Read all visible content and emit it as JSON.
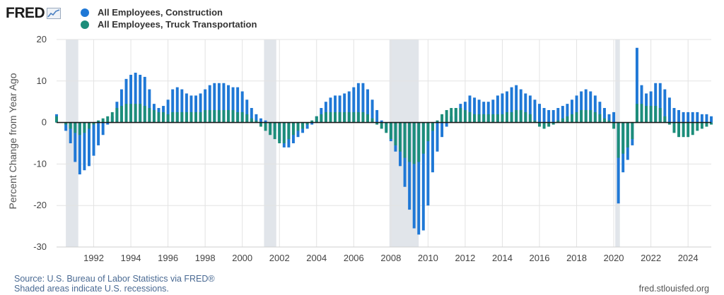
{
  "logo": {
    "text": "FRED"
  },
  "legend": [
    {
      "label": "All Employees, Construction",
      "color": "#1f78d6"
    },
    {
      "label": "All Employees, Truck Transportation",
      "color": "#1c8d7a"
    }
  ],
  "footer": {
    "source": "Source: U.S. Bureau of Labor Statistics via FRED®",
    "recessions_note": "Shaded areas indicate U.S. recessions.",
    "site": "fred.stlouisfed.org"
  },
  "chart_data": {
    "type": "bar",
    "ylabel": "Percent Change from Year Ago",
    "xlabel": "",
    "ylim": [
      -30,
      20
    ],
    "yticks": [
      20,
      10,
      0,
      -10,
      -20,
      -30
    ],
    "xlim": [
      1990.0,
      2025.25
    ],
    "xticks": [
      1992,
      1994,
      1996,
      1998,
      2000,
      2002,
      2004,
      2006,
      2008,
      2010,
      2012,
      2014,
      2016,
      2018,
      2020,
      2022,
      2024
    ],
    "grid": true,
    "legend_position": "top-left",
    "recessions": [
      [
        1990.5,
        1991.17
      ],
      [
        2001.17,
        2001.83
      ],
      [
        2007.92,
        2009.5
      ],
      [
        2020.08,
        2020.33
      ]
    ],
    "series": [
      {
        "name": "All Employees, Construction",
        "color": "#1f78d6",
        "points": [
          [
            1990.0,
            2.0
          ],
          [
            1990.5,
            -2.0
          ],
          [
            1990.75,
            -5.0
          ],
          [
            1991.0,
            -9.5
          ],
          [
            1991.25,
            -12.5
          ],
          [
            1991.5,
            -11.5
          ],
          [
            1991.75,
            -10.5
          ],
          [
            1992.0,
            -8.0
          ],
          [
            1992.25,
            -5.5
          ],
          [
            1992.5,
            -3.0
          ],
          [
            1992.75,
            -0.5
          ],
          [
            1993.0,
            1.5
          ],
          [
            1993.25,
            5.0
          ],
          [
            1993.5,
            8.0
          ],
          [
            1993.75,
            10.5
          ],
          [
            1994.0,
            11.5
          ],
          [
            1994.25,
            12.0
          ],
          [
            1994.5,
            11.5
          ],
          [
            1994.75,
            11.0
          ],
          [
            1995.0,
            8.0
          ],
          [
            1995.25,
            4.5
          ],
          [
            1995.5,
            3.5
          ],
          [
            1995.75,
            4.0
          ],
          [
            1996.0,
            5.5
          ],
          [
            1996.25,
            8.0
          ],
          [
            1996.5,
            8.5
          ],
          [
            1996.75,
            8.0
          ],
          [
            1997.0,
            7.0
          ],
          [
            1997.25,
            6.5
          ],
          [
            1997.5,
            6.5
          ],
          [
            1997.75,
            7.0
          ],
          [
            1998.0,
            8.0
          ],
          [
            1998.25,
            9.0
          ],
          [
            1998.5,
            9.5
          ],
          [
            1998.75,
            9.5
          ],
          [
            1999.0,
            9.5
          ],
          [
            1999.25,
            9.0
          ],
          [
            1999.5,
            8.5
          ],
          [
            1999.75,
            8.5
          ],
          [
            2000.0,
            7.5
          ],
          [
            2000.25,
            5.5
          ],
          [
            2000.5,
            3.5
          ],
          [
            2000.75,
            2.0
          ],
          [
            2001.0,
            1.0
          ],
          [
            2001.25,
            0.5
          ],
          [
            2001.5,
            -0.5
          ],
          [
            2001.75,
            -2.0
          ],
          [
            2002.0,
            -4.5
          ],
          [
            2002.25,
            -6.0
          ],
          [
            2002.5,
            -6.0
          ],
          [
            2002.75,
            -5.0
          ],
          [
            2003.0,
            -3.5
          ],
          [
            2003.25,
            -2.5
          ],
          [
            2003.5,
            -1.5
          ],
          [
            2003.75,
            -0.5
          ],
          [
            2004.0,
            1.5
          ],
          [
            2004.25,
            3.5
          ],
          [
            2004.5,
            5.0
          ],
          [
            2004.75,
            6.0
          ],
          [
            2005.0,
            6.5
          ],
          [
            2005.25,
            6.5
          ],
          [
            2005.5,
            7.0
          ],
          [
            2005.75,
            7.5
          ],
          [
            2006.0,
            8.5
          ],
          [
            2006.25,
            9.5
          ],
          [
            2006.5,
            9.5
          ],
          [
            2006.75,
            8.0
          ],
          [
            2007.0,
            5.5
          ],
          [
            2007.25,
            3.0
          ],
          [
            2007.5,
            0.5
          ],
          [
            2007.75,
            -2.0
          ],
          [
            2008.0,
            -4.5
          ],
          [
            2008.25,
            -7.0
          ],
          [
            2008.5,
            -10.5
          ],
          [
            2008.75,
            -15.5
          ],
          [
            2009.0,
            -21.0
          ],
          [
            2009.25,
            -25.5
          ],
          [
            2009.5,
            -27.0
          ],
          [
            2009.75,
            -26.0
          ],
          [
            2010.0,
            -20.0
          ],
          [
            2010.25,
            -12.0
          ],
          [
            2010.5,
            -7.0
          ],
          [
            2010.75,
            -3.5
          ],
          [
            2011.0,
            -1.0
          ],
          [
            2011.25,
            1.5
          ],
          [
            2011.5,
            3.5
          ],
          [
            2011.75,
            4.5
          ],
          [
            2012.0,
            5.0
          ],
          [
            2012.25,
            6.5
          ],
          [
            2012.5,
            6.0
          ],
          [
            2012.75,
            5.5
          ],
          [
            2013.0,
            5.0
          ],
          [
            2013.25,
            5.0
          ],
          [
            2013.5,
            5.5
          ],
          [
            2013.75,
            6.5
          ],
          [
            2014.0,
            7.0
          ],
          [
            2014.25,
            7.5
          ],
          [
            2014.5,
            8.5
          ],
          [
            2014.75,
            9.0
          ],
          [
            2015.0,
            8.0
          ],
          [
            2015.25,
            7.0
          ],
          [
            2015.5,
            6.5
          ],
          [
            2015.75,
            5.5
          ],
          [
            2016.0,
            4.5
          ],
          [
            2016.25,
            3.5
          ],
          [
            2016.5,
            3.0
          ],
          [
            2016.75,
            3.0
          ],
          [
            2017.0,
            3.5
          ],
          [
            2017.25,
            4.0
          ],
          [
            2017.5,
            4.5
          ],
          [
            2017.75,
            5.5
          ],
          [
            2018.0,
            6.5
          ],
          [
            2018.25,
            7.5
          ],
          [
            2018.5,
            8.0
          ],
          [
            2018.75,
            7.5
          ],
          [
            2019.0,
            6.5
          ],
          [
            2019.25,
            5.0
          ],
          [
            2019.5,
            3.5
          ],
          [
            2019.75,
            2.0
          ],
          [
            2020.0,
            2.5
          ],
          [
            2020.25,
            -19.5
          ],
          [
            2020.5,
            -12.0
          ],
          [
            2020.75,
            -9.0
          ],
          [
            2021.0,
            -5.5
          ],
          [
            2021.25,
            18.0
          ],
          [
            2021.5,
            9.0
          ],
          [
            2021.75,
            7.0
          ],
          [
            2022.0,
            7.5
          ],
          [
            2022.25,
            9.5
          ],
          [
            2022.5,
            9.5
          ],
          [
            2022.75,
            8.0
          ],
          [
            2023.0,
            6.0
          ],
          [
            2023.25,
            3.5
          ],
          [
            2023.5,
            3.0
          ],
          [
            2023.75,
            2.5
          ],
          [
            2024.0,
            2.5
          ],
          [
            2024.25,
            2.5
          ],
          [
            2024.5,
            2.5
          ],
          [
            2024.75,
            2.0
          ],
          [
            2025.0,
            2.0
          ],
          [
            2025.25,
            1.5
          ]
        ]
      },
      {
        "name": "All Employees, Truck Transportation",
        "color": "#1c8d7a",
        "points": [
          [
            1990.0,
            1.5
          ],
          [
            1990.5,
            -0.5
          ],
          [
            1990.75,
            -1.5
          ],
          [
            1991.0,
            -2.5
          ],
          [
            1991.25,
            -3.0
          ],
          [
            1991.5,
            -2.5
          ],
          [
            1991.75,
            -1.5
          ],
          [
            1992.0,
            -0.5
          ],
          [
            1992.25,
            0.5
          ],
          [
            1992.5,
            1.0
          ],
          [
            1992.75,
            1.5
          ],
          [
            1993.0,
            2.5
          ],
          [
            1993.25,
            3.5
          ],
          [
            1993.5,
            4.0
          ],
          [
            1993.75,
            4.5
          ],
          [
            1994.0,
            4.5
          ],
          [
            1994.25,
            4.5
          ],
          [
            1994.5,
            4.5
          ],
          [
            1994.75,
            4.0
          ],
          [
            1995.0,
            3.5
          ],
          [
            1995.25,
            3.0
          ],
          [
            1995.5,
            2.5
          ],
          [
            1995.75,
            2.5
          ],
          [
            1996.0,
            2.0
          ],
          [
            1996.25,
            2.5
          ],
          [
            1996.5,
            2.5
          ],
          [
            1996.75,
            2.5
          ],
          [
            1997.0,
            2.5
          ],
          [
            1997.25,
            2.5
          ],
          [
            1997.5,
            2.5
          ],
          [
            1997.75,
            2.5
          ],
          [
            1998.0,
            3.0
          ],
          [
            1998.25,
            3.0
          ],
          [
            1998.5,
            3.0
          ],
          [
            1998.75,
            3.0
          ],
          [
            1999.0,
            3.0
          ],
          [
            1999.25,
            3.0
          ],
          [
            1999.5,
            3.0
          ],
          [
            1999.75,
            2.5
          ],
          [
            2000.0,
            2.5
          ],
          [
            2000.25,
            2.0
          ],
          [
            2000.5,
            1.0
          ],
          [
            2000.75,
            0.5
          ],
          [
            2001.0,
            -1.0
          ],
          [
            2001.25,
            -2.0
          ],
          [
            2001.5,
            -3.0
          ],
          [
            2001.75,
            -4.0
          ],
          [
            2002.0,
            -5.0
          ],
          [
            2002.25,
            -5.0
          ],
          [
            2002.5,
            -4.0
          ],
          [
            2002.75,
            -3.0
          ],
          [
            2003.0,
            -2.0
          ],
          [
            2003.25,
            -1.5
          ],
          [
            2003.5,
            -0.5
          ],
          [
            2003.75,
            0.5
          ],
          [
            2004.0,
            1.5
          ],
          [
            2004.25,
            2.0
          ],
          [
            2004.5,
            2.5
          ],
          [
            2004.75,
            2.5
          ],
          [
            2005.0,
            2.5
          ],
          [
            2005.25,
            2.5
          ],
          [
            2005.5,
            2.5
          ],
          [
            2005.75,
            2.5
          ],
          [
            2006.0,
            2.5
          ],
          [
            2006.25,
            2.5
          ],
          [
            2006.5,
            2.5
          ],
          [
            2006.75,
            2.0
          ],
          [
            2007.0,
            1.0
          ],
          [
            2007.25,
            -0.5
          ],
          [
            2007.5,
            -1.5
          ],
          [
            2007.75,
            -2.5
          ],
          [
            2008.0,
            -4.0
          ],
          [
            2008.25,
            -5.5
          ],
          [
            2008.5,
            -7.0
          ],
          [
            2008.75,
            -8.5
          ],
          [
            2009.0,
            -9.5
          ],
          [
            2009.25,
            -10.0
          ],
          [
            2009.5,
            -9.5
          ],
          [
            2009.75,
            -7.5
          ],
          [
            2010.0,
            -4.5
          ],
          [
            2010.25,
            -2.0
          ],
          [
            2010.5,
            0.5
          ],
          [
            2010.75,
            2.0
          ],
          [
            2011.0,
            3.0
          ],
          [
            2011.25,
            3.5
          ],
          [
            2011.5,
            3.5
          ],
          [
            2011.75,
            3.5
          ],
          [
            2012.0,
            3.0
          ],
          [
            2012.25,
            2.5
          ],
          [
            2012.5,
            2.0
          ],
          [
            2012.75,
            2.0
          ],
          [
            2013.0,
            2.0
          ],
          [
            2013.25,
            2.0
          ],
          [
            2013.5,
            2.0
          ],
          [
            2013.75,
            2.0
          ],
          [
            2014.0,
            2.0
          ],
          [
            2014.25,
            2.5
          ],
          [
            2014.5,
            2.5
          ],
          [
            2014.75,
            3.0
          ],
          [
            2015.0,
            3.0
          ],
          [
            2015.25,
            2.5
          ],
          [
            2015.5,
            2.0
          ],
          [
            2015.75,
            0.5
          ],
          [
            2016.0,
            -1.0
          ],
          [
            2016.25,
            -1.5
          ],
          [
            2016.5,
            -1.0
          ],
          [
            2016.75,
            -0.5
          ],
          [
            2017.0,
            0.5
          ],
          [
            2017.25,
            1.0
          ],
          [
            2017.5,
            1.5
          ],
          [
            2017.75,
            2.0
          ],
          [
            2018.0,
            2.5
          ],
          [
            2018.25,
            3.0
          ],
          [
            2018.5,
            3.0
          ],
          [
            2018.75,
            3.0
          ],
          [
            2019.0,
            2.5
          ],
          [
            2019.25,
            2.0
          ],
          [
            2019.5,
            1.0
          ],
          [
            2019.75,
            0.5
          ],
          [
            2020.0,
            -1.5
          ],
          [
            2020.25,
            -8.5
          ],
          [
            2020.5,
            -7.5
          ],
          [
            2020.75,
            -6.0
          ],
          [
            2021.0,
            -4.0
          ],
          [
            2021.25,
            4.5
          ],
          [
            2021.5,
            4.5
          ],
          [
            2021.75,
            4.0
          ],
          [
            2022.0,
            4.0
          ],
          [
            2022.25,
            4.0
          ],
          [
            2022.5,
            3.5
          ],
          [
            2022.75,
            1.5
          ],
          [
            2023.0,
            -0.5
          ],
          [
            2023.25,
            -2.5
          ],
          [
            2023.5,
            -3.5
          ],
          [
            2023.75,
            -3.5
          ],
          [
            2024.0,
            -3.5
          ],
          [
            2024.25,
            -3.0
          ],
          [
            2024.5,
            -2.0
          ],
          [
            2024.75,
            -1.5
          ],
          [
            2025.0,
            -1.0
          ],
          [
            2025.25,
            -0.5
          ]
        ]
      }
    ]
  }
}
